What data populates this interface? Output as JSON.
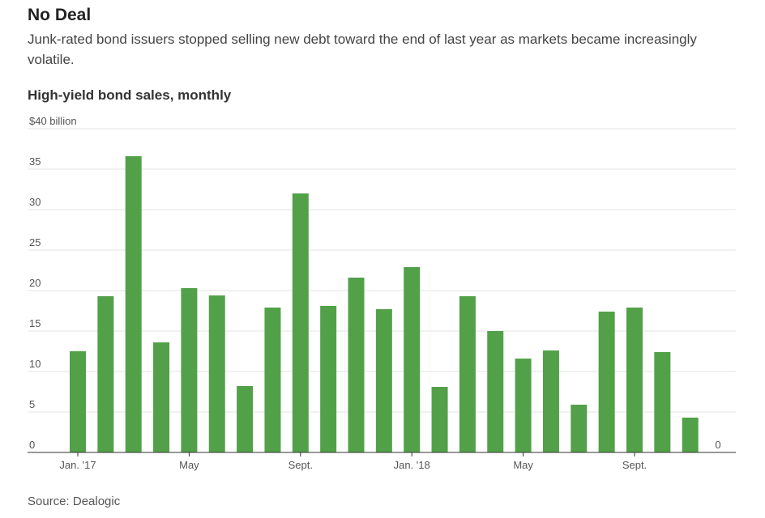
{
  "header": {
    "title": "No Deal",
    "subtitle": "Junk-rated bond issuers stopped selling new debt toward the end of last year as markets became increasingly volatile.",
    "chart_title": "High-yield bond sales, monthly"
  },
  "footer": {
    "source": "Source: Dealogic"
  },
  "chart_data": {
    "type": "bar",
    "title": "High-yield bond sales, monthly",
    "xlabel": "",
    "ylabel": "",
    "ylim": [
      0,
      40
    ],
    "y_ticks": [
      {
        "value": 0,
        "label": "0"
      },
      {
        "value": 5,
        "label": "5"
      },
      {
        "value": 10,
        "label": "10"
      },
      {
        "value": 15,
        "label": "15"
      },
      {
        "value": 20,
        "label": "20"
      },
      {
        "value": 25,
        "label": "25"
      },
      {
        "value": 30,
        "label": "30"
      },
      {
        "value": 35,
        "label": "35"
      },
      {
        "value": 40,
        "label": "$40 billion"
      }
    ],
    "x_ticks": [
      {
        "index": 0,
        "label": "Jan. '17"
      },
      {
        "index": 4,
        "label": "May"
      },
      {
        "index": 8,
        "label": "Sept."
      },
      {
        "index": 12,
        "label": "Jan. '18"
      },
      {
        "index": 16,
        "label": "May"
      },
      {
        "index": 20,
        "label": "Sept."
      }
    ],
    "categories": [
      "Jan 2017",
      "Feb 2017",
      "Mar 2017",
      "Apr 2017",
      "May 2017",
      "Jun 2017",
      "Jul 2017",
      "Aug 2017",
      "Sep 2017",
      "Oct 2017",
      "Nov 2017",
      "Dec 2017",
      "Jan 2018",
      "Feb 2018",
      "Mar 2018",
      "Apr 2018",
      "May 2018",
      "Jun 2018",
      "Jul 2018",
      "Aug 2018",
      "Sep 2018",
      "Oct 2018",
      "Nov 2018",
      "Dec 2018"
    ],
    "values": [
      12.5,
      19.3,
      36.6,
      13.6,
      20.3,
      19.4,
      8.2,
      17.9,
      32.0,
      18.1,
      21.6,
      17.7,
      22.9,
      8.1,
      19.3,
      15.0,
      11.6,
      12.6,
      5.9,
      17.4,
      17.9,
      12.4,
      4.3,
      0
    ],
    "annotations": [
      {
        "index": 23,
        "label": "0"
      }
    ],
    "grid": true,
    "legend": "none",
    "colors": {
      "bar": "#52a148",
      "grid": "#e3e3e3",
      "axis": "#333333"
    }
  }
}
